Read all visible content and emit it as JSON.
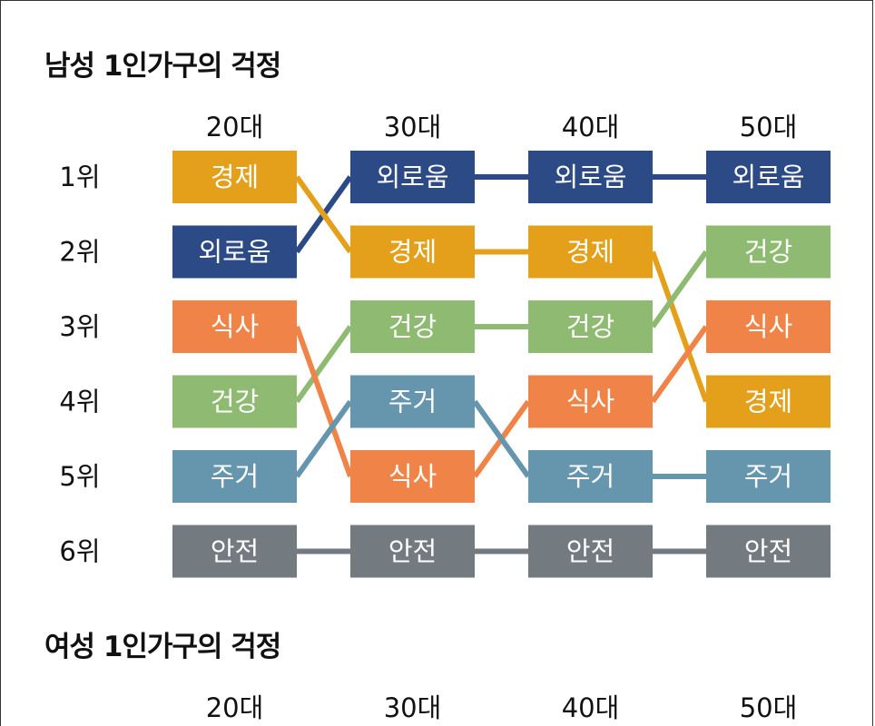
{
  "sections": [
    {
      "title": "남성 1인가구의 걱정"
    },
    {
      "title": "여성 1인가구의 걱정"
    }
  ],
  "chart_data": [
    {
      "type": "bump",
      "title": "남성 1인가구의 걱정",
      "columns": [
        "20대",
        "30대",
        "40대",
        "50대"
      ],
      "ranks": [
        "1위",
        "2위",
        "3위",
        "4위",
        "5위",
        "6위"
      ],
      "series": [
        {
          "name": "외로움",
          "color": "#2b4a86",
          "rank_by_column": [
            2,
            1,
            1,
            1
          ]
        },
        {
          "name": "경제",
          "color": "#e5a01b",
          "rank_by_column": [
            1,
            2,
            2,
            4
          ]
        },
        {
          "name": "건강",
          "color": "#8fba72",
          "rank_by_column": [
            4,
            3,
            3,
            2
          ]
        },
        {
          "name": "식사",
          "color": "#f08448",
          "rank_by_column": [
            3,
            5,
            4,
            3
          ]
        },
        {
          "name": "주거",
          "color": "#6596ae",
          "rank_by_column": [
            5,
            4,
            5,
            5
          ]
        },
        {
          "name": "안전",
          "color": "#737a80",
          "rank_by_column": [
            6,
            6,
            6,
            6
          ]
        }
      ]
    },
    {
      "type": "bump",
      "title": "여성 1인가구의 걱정",
      "columns": [
        "20대",
        "30대",
        "40대",
        "50대"
      ]
    }
  ]
}
